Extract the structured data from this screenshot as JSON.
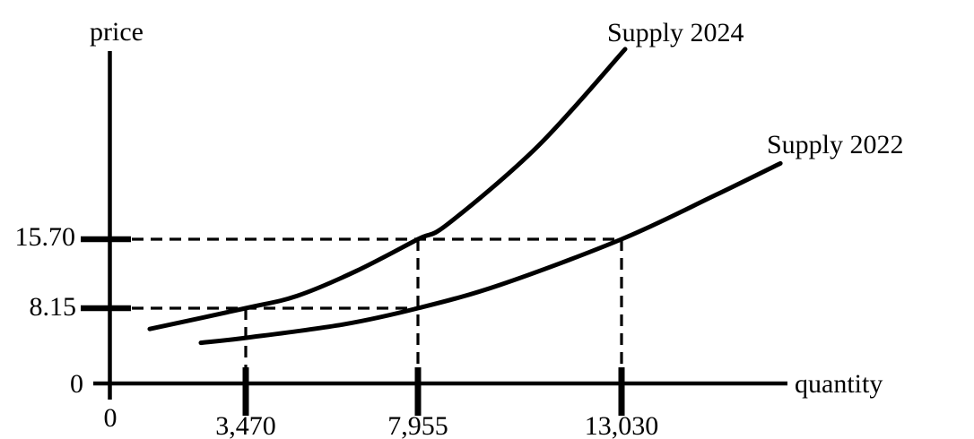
{
  "colors": {
    "ink": "#000000",
    "background": "#ffffff"
  },
  "chart_data": {
    "type": "line",
    "title": "",
    "xlabel": "quantity",
    "ylabel": "price",
    "grid": false,
    "legend": "labels-at-line-ends",
    "x_axis": {
      "min": 0,
      "max": 17300
    },
    "y_axis": {
      "min": 0,
      "max": 37
    },
    "x_ticks": [
      {
        "label": "0",
        "value": 0
      },
      {
        "label": "3,470",
        "value": 3470
      },
      {
        "label": "7,955",
        "value": 7955
      },
      {
        "label": "13,030",
        "value": 13030
      }
    ],
    "y_ticks": [
      {
        "label": "0",
        "value": 0
      },
      {
        "label": "8.15",
        "value": 8.15
      },
      {
        "label": "15.70",
        "value": 15.7
      }
    ],
    "series": [
      {
        "name": "Supply 2024",
        "points": [
          [
            1010,
            5.9
          ],
          [
            3470,
            8.15
          ],
          [
            4810,
            9.5
          ],
          [
            6340,
            12.2
          ],
          [
            7955,
            15.7
          ],
          [
            8710,
            17.4
          ],
          [
            10950,
            25.9
          ],
          [
            13120,
            36.5
          ]
        ]
      },
      {
        "name": "Supply 2022",
        "points": [
          [
            2320,
            4.4
          ],
          [
            3490,
            4.95
          ],
          [
            6020,
            6.4
          ],
          [
            7955,
            8.15
          ],
          [
            10000,
            10.7
          ],
          [
            13030,
            15.7
          ],
          [
            15360,
            20.5
          ],
          [
            16990,
            24.0
          ]
        ]
      }
    ],
    "reference_lines": {
      "horizontal": [
        {
          "price": 15.7,
          "to_quantity": 13030
        },
        {
          "price": 8.15,
          "to_quantity": 7955
        }
      ],
      "vertical": [
        {
          "quantity": 3470,
          "from_price": 8.15
        },
        {
          "quantity": 7955,
          "from_price": 15.7
        },
        {
          "quantity": 13030,
          "from_price": 15.7
        }
      ]
    },
    "intersections": [
      {
        "series": "Supply 2024",
        "quantity": 3470,
        "price": 8.15
      },
      {
        "series": "Supply 2024",
        "quantity": 7955,
        "price": 15.7
      },
      {
        "series": "Supply 2022",
        "quantity": 7955,
        "price": 8.15
      },
      {
        "series": "Supply 2022",
        "quantity": 13030,
        "price": 15.7
      }
    ]
  }
}
